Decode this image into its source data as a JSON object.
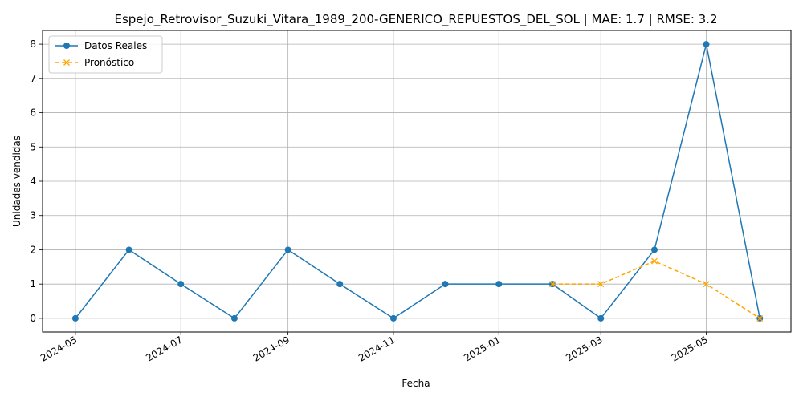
{
  "chart_data": {
    "type": "line",
    "title": "Espejo_Retrovisor_Suzuki_Vitara_1989_200-GENERICO_REPUESTOS_DEL_SOL | MAE: 1.7 | RMSE: 3.2",
    "xlabel": "Fecha",
    "ylabel": "Unidades vendidas",
    "x_ticks": [
      "2024-05",
      "2024-07",
      "2024-09",
      "2024-11",
      "2025-01",
      "2025-03",
      "2025-05"
    ],
    "y_ticks": [
      0,
      1,
      2,
      3,
      4,
      5,
      6,
      7,
      8
    ],
    "xlim": [
      "2024-04-12",
      "2025-06-19"
    ],
    "ylim": [
      -0.4,
      8.4
    ],
    "grid": true,
    "legend_position": "top-left",
    "series": [
      {
        "name": "Datos Reales",
        "color": "#1f77b4",
        "marker": "circle",
        "line_style": "solid",
        "x": [
          "2024-05-01",
          "2024-06-01",
          "2024-07-01",
          "2024-08-01",
          "2024-09-01",
          "2024-10-01",
          "2024-11-01",
          "2024-12-01",
          "2025-01-01",
          "2025-02-01",
          "2025-03-01",
          "2025-04-01",
          "2025-05-01",
          "2025-06-01"
        ],
        "values": [
          0,
          2,
          1,
          0,
          2,
          1,
          0,
          1,
          1,
          1,
          0,
          2,
          8,
          0
        ]
      },
      {
        "name": "Pronóstico",
        "color": "#ffa500",
        "marker": "x",
        "line_style": "dashed",
        "x": [
          "2025-02-01",
          "2025-03-01",
          "2025-04-01",
          "2025-05-01",
          "2025-06-01"
        ],
        "values": [
          1,
          1,
          1.67,
          1,
          0
        ]
      }
    ]
  }
}
